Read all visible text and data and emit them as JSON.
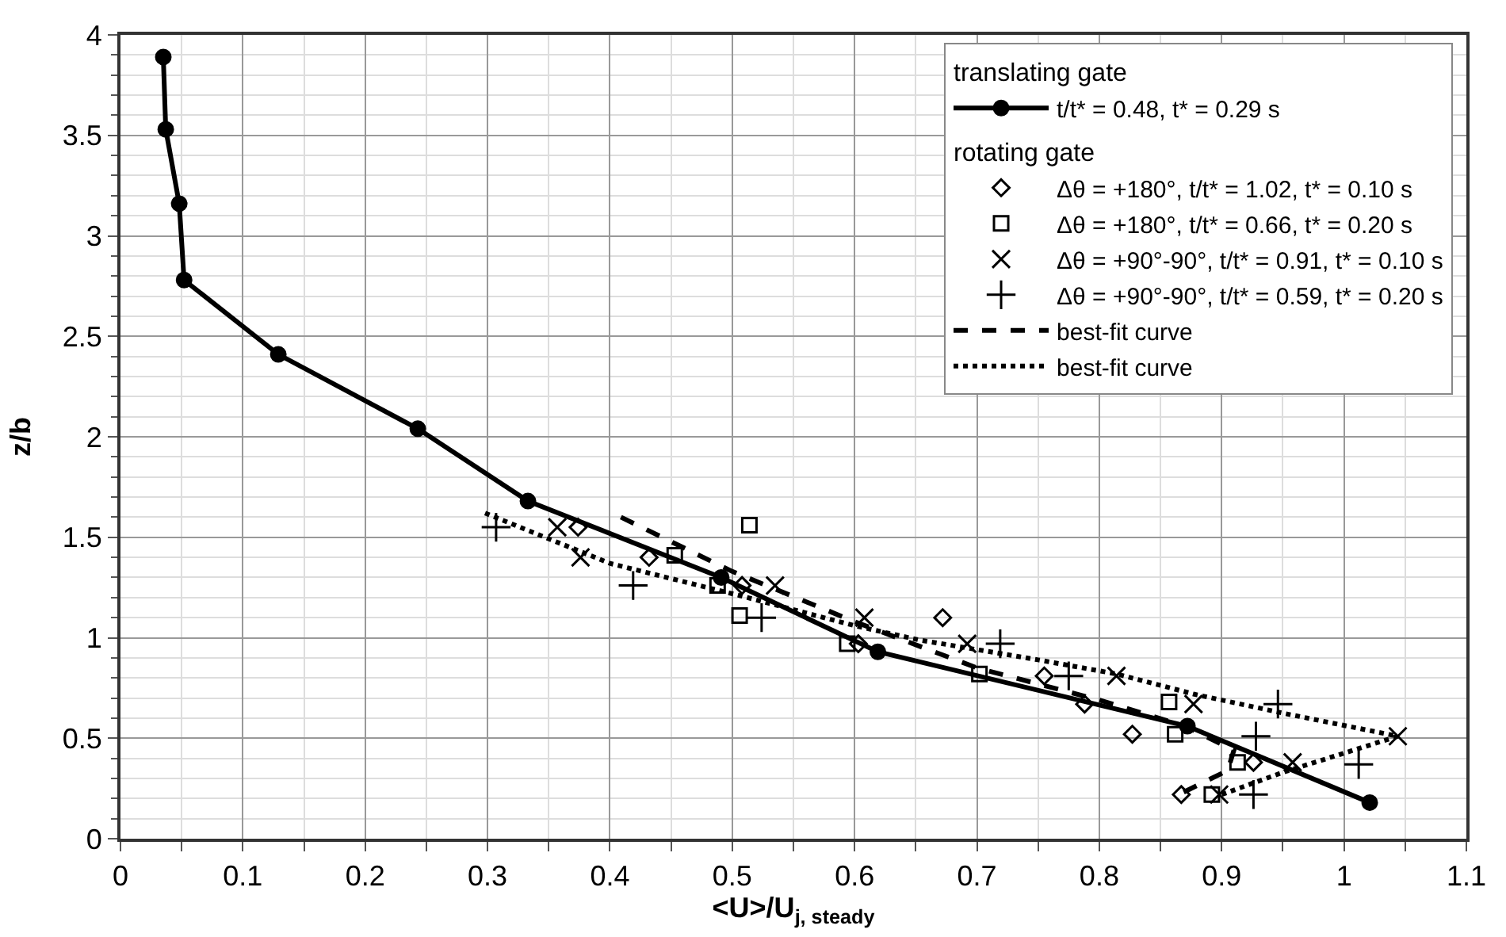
{
  "chart_data": {
    "type": "scatter",
    "xlabel": "<U>/U$_{j, steady}$",
    "ylabel": "z/b",
    "xlim": [
      0,
      1.1
    ],
    "ylim": [
      0,
      4
    ],
    "xticks": [
      0,
      0.1,
      0.2,
      0.3,
      0.4,
      0.5,
      0.6,
      0.7,
      0.8,
      0.9,
      1,
      1.1,
      {
        "value": 0.05,
        "label": null
      },
      {
        "value": 0.15,
        "label": null
      },
      {
        "value": 0.25,
        "label": null
      },
      {
        "value": 0.35,
        "label": null
      },
      {
        "value": 0.45,
        "label": null
      },
      {
        "value": 0.55,
        "label": null
      },
      {
        "value": 0.65,
        "label": null
      },
      {
        "value": 0.75,
        "label": null
      },
      {
        "value": 0.85,
        "label": null
      },
      {
        "value": 0.95,
        "label": null
      },
      {
        "value": 1.05,
        "label": null
      }
    ],
    "yticks": [
      0,
      0.5,
      1,
      1.5,
      2,
      2.5,
      3,
      3.5,
      4,
      {
        "value": 0.1,
        "label": null
      },
      {
        "value": 0.2,
        "label": null
      },
      {
        "value": 0.3,
        "label": null
      },
      {
        "value": 0.4,
        "label": null
      },
      {
        "value": 0.6,
        "label": null
      },
      {
        "value": 0.7,
        "label": null
      },
      {
        "value": 0.8,
        "label": null
      },
      {
        "value": 0.9,
        "label": null
      },
      {
        "value": 1.1,
        "label": null
      },
      {
        "value": 1.2,
        "label": null
      },
      {
        "value": 1.3,
        "label": null
      },
      {
        "value": 1.4,
        "label": null
      },
      {
        "value": 1.6,
        "label": null
      },
      {
        "value": 1.7,
        "label": null
      },
      {
        "value": 1.8,
        "label": null
      },
      {
        "value": 1.9,
        "label": null
      },
      {
        "value": 2.1,
        "label": null
      },
      {
        "value": 2.2,
        "label": null
      },
      {
        "value": 2.3,
        "label": null
      },
      {
        "value": 2.4,
        "label": null
      },
      {
        "value": 2.6,
        "label": null
      },
      {
        "value": 2.7,
        "label": null
      },
      {
        "value": 2.8,
        "label": null
      },
      {
        "value": 2.9,
        "label": null
      },
      {
        "value": 3.1,
        "label": null
      },
      {
        "value": 3.2,
        "label": null
      },
      {
        "value": 3.3,
        "label": null
      },
      {
        "value": 3.4,
        "label": null
      },
      {
        "value": 3.6,
        "label": null
      },
      {
        "value": 3.7,
        "label": null
      },
      {
        "value": 3.8,
        "label": null
      },
      {
        "value": 3.9,
        "label": null
      }
    ],
    "grid": true,
    "legend": "top right",
    "annotations": [
      "translating gate",
      "rotating gate"
    ],
    "series": [
      {
        "name": "t/t* = 0.48, t* = 0.29 s",
        "type": "line",
        "marker": "circle",
        "line_style": "solid",
        "color": "#000000",
        "x": [
          0.035,
          0.037,
          0.048,
          0.052,
          0.129,
          0.243,
          0.333,
          0.491,
          0.619,
          0.872,
          1.021
        ],
        "values": [
          3.89,
          3.53,
          3.16,
          2.78,
          2.41,
          2.04,
          1.68,
          1.3,
          0.93,
          0.56,
          0.18
        ]
      },
      {
        "name": "Δθ = +180°, t/t* = 1.02, t* = 0.10 s",
        "type": "scatter",
        "marker": "diamond",
        "color": "#000000",
        "x": [
          0.374,
          0.432,
          0.508,
          0.672,
          0.603,
          0.755,
          0.788,
          0.827,
          0.926,
          0.867
        ],
        "values": [
          1.55,
          1.4,
          1.26,
          1.1,
          0.97,
          0.81,
          0.67,
          0.52,
          0.38,
          0.22
        ]
      },
      {
        "name": "Δθ = +180°, t/t* = 0.66, t* = 0.20 s",
        "type": "scatter",
        "marker": "square",
        "color": "#000000",
        "x": [
          0.514,
          0.453,
          0.488,
          0.506,
          0.594,
          0.702,
          0.857,
          0.862,
          0.913,
          0.892
        ],
        "values": [
          1.56,
          1.41,
          1.26,
          1.11,
          0.97,
          0.82,
          0.68,
          0.52,
          0.38,
          0.22
        ]
      },
      {
        "name": "Δθ = +90°-90°, t/t* = 0.91, t* = 0.10 s",
        "type": "scatter",
        "marker": "x",
        "color": "#000000",
        "x": [
          0.357,
          0.376,
          0.535,
          0.608,
          0.692,
          0.814,
          0.877,
          1.044,
          0.958,
          0.898
        ],
        "values": [
          1.55,
          1.4,
          1.26,
          1.1,
          0.97,
          0.81,
          0.67,
          0.51,
          0.38,
          0.22
        ]
      },
      {
        "name": "Δθ = +90°-90°, t/t* = 0.59, t* = 0.20 s",
        "type": "scatter",
        "marker": "cross",
        "color": "#000000",
        "x": [
          0.307,
          0.419,
          0.524,
          0.719,
          0.775,
          0.946,
          0.928,
          1.012,
          0.926
        ],
        "values": [
          1.55,
          1.26,
          1.1,
          0.97,
          0.81,
          0.67,
          0.51,
          0.37,
          0.22
        ]
      },
      {
        "name": "best-fit curve",
        "type": "line",
        "marker": "none",
        "line_style": "dashed",
        "color": "#000000",
        "x": [
          0.409,
          0.5,
          0.6,
          0.7,
          0.8,
          0.87,
          0.91,
          0.905,
          0.865
        ],
        "values": [
          1.6,
          1.33,
          1.08,
          0.85,
          0.69,
          0.56,
          0.44,
          0.34,
          0.22
        ]
      },
      {
        "name": "best-fit curve",
        "type": "line",
        "marker": "none",
        "line_style": "dotted",
        "color": "#000000",
        "x": [
          0.298,
          0.4,
          0.506,
          0.6,
          0.652,
          0.75,
          0.814,
          0.877,
          0.954,
          1.044,
          0.997,
          0.95,
          0.9
        ],
        "values": [
          1.62,
          1.37,
          1.21,
          1.06,
          0.99,
          0.89,
          0.82,
          0.72,
          0.62,
          0.51,
          0.42,
          0.33,
          0.22
        ]
      }
    ]
  }
}
